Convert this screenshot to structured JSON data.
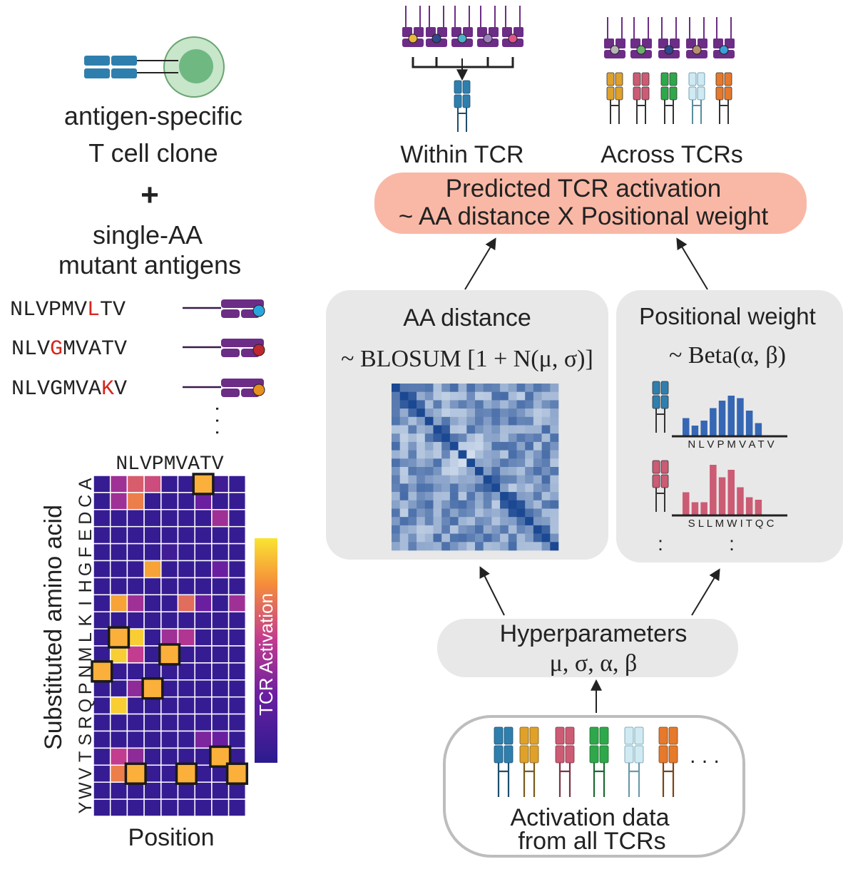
{
  "left": {
    "clone_line1": "antigen-specific",
    "clone_line2": "T cell clone",
    "plus": "+",
    "mutant_line1": "single-AA",
    "mutant_line2": "mutant antigens",
    "peptides": [
      {
        "pre": "NLVPMV",
        "mut": "L",
        "post": "TV",
        "dot_color": "#2aa6df"
      },
      {
        "pre": "NLV",
        "mut": "G",
        "post": "MVATV",
        "dot_color": "#c0282f"
      },
      {
        "pre": "NLVGMVA",
        "mut": "K",
        "post": "V",
        "dot_color": "#e8901e"
      }
    ],
    "ellipsis": ". . .",
    "mutation_color": "#d7261e"
  },
  "heatmap": {
    "columns": [
      "N",
      "L",
      "V",
      "P",
      "M",
      "V",
      "A",
      "T",
      "V"
    ],
    "column_header": "NLVPMVATV",
    "rows": [
      "A",
      "C",
      "D",
      "E",
      "F",
      "G",
      "H",
      "I",
      "K",
      "L",
      "M",
      "N",
      "P",
      "Q",
      "R",
      "S",
      "T",
      "V",
      "W",
      "Y"
    ],
    "ylabel": "Substituted amino acid",
    "xlabel": "Position",
    "colorbar_label": "TCR Activation",
    "wildtype_color": "#fbb03b",
    "values": [
      [
        0.05,
        0.45,
        0.65,
        0.6,
        0.05,
        0.05,
        1.0,
        0.1,
        0.05
      ],
      [
        0.05,
        0.45,
        0.75,
        0.05,
        0.05,
        0.05,
        0.3,
        0.05,
        0.05
      ],
      [
        0.05,
        0.05,
        0.05,
        0.05,
        0.05,
        0.05,
        0.05,
        0.45,
        0.05
      ],
      [
        0.05,
        0.05,
        0.05,
        0.05,
        0.05,
        0.05,
        0.05,
        0.05,
        0.05
      ],
      [
        0.05,
        0.05,
        0.05,
        0.05,
        0.1,
        0.05,
        0.05,
        0.05,
        0.05
      ],
      [
        0.05,
        0.05,
        0.05,
        0.85,
        0.05,
        0.05,
        0.05,
        0.3,
        0.05
      ],
      [
        0.05,
        0.05,
        0.05,
        0.05,
        0.05,
        0.05,
        0.05,
        0.05,
        0.05
      ],
      [
        0.05,
        0.85,
        0.45,
        0.05,
        0.05,
        0.7,
        0.3,
        0.05,
        0.45
      ],
      [
        0.05,
        0.05,
        0.05,
        0.05,
        0.05,
        0.05,
        0.05,
        0.05,
        0.05
      ],
      [
        0.05,
        1.0,
        0.95,
        0.05,
        0.45,
        0.5,
        0.05,
        0.05,
        0.05
      ],
      [
        0.05,
        0.95,
        0.55,
        0.05,
        1.0,
        0.05,
        0.05,
        0.05,
        0.05
      ],
      [
        1.0,
        0.05,
        0.05,
        0.05,
        0.05,
        0.05,
        0.05,
        0.05,
        0.05
      ],
      [
        0.05,
        0.05,
        0.4,
        1.0,
        0.05,
        0.05,
        0.05,
        0.05,
        0.05
      ],
      [
        0.05,
        0.95,
        0.05,
        0.05,
        0.05,
        0.05,
        0.05,
        0.05,
        0.05
      ],
      [
        0.05,
        0.05,
        0.05,
        0.05,
        0.05,
        0.05,
        0.05,
        0.05,
        0.05
      ],
      [
        0.05,
        0.05,
        0.05,
        0.05,
        0.05,
        0.05,
        0.35,
        0.3,
        0.05
      ],
      [
        0.05,
        0.55,
        0.4,
        0.05,
        0.05,
        0.05,
        0.05,
        1.0,
        0.05
      ],
      [
        0.05,
        0.75,
        1.0,
        0.05,
        0.05,
        1.0,
        0.05,
        0.05,
        1.0
      ],
      [
        0.05,
        0.05,
        0.05,
        0.05,
        0.05,
        0.05,
        0.05,
        0.05,
        0.05
      ],
      [
        0.05,
        0.05,
        0.05,
        0.05,
        0.05,
        0.05,
        0.05,
        0.05,
        0.05
      ]
    ],
    "wildtype_cells": [
      [
        0,
        6
      ],
      [
        9,
        1
      ],
      [
        10,
        4
      ],
      [
        11,
        0
      ],
      [
        12,
        3
      ],
      [
        16,
        7
      ],
      [
        17,
        2
      ],
      [
        17,
        5
      ],
      [
        17,
        8
      ]
    ]
  },
  "top": {
    "within_label": "Within TCR",
    "across_label": "Across TCRs",
    "dot_colors": [
      "#e8b83a",
      "#2e4a8c",
      "#4ab3c9",
      "#a07fbf",
      "#e0548a"
    ],
    "across_dot_colors": [
      "#b5b5b5",
      "#6ab06a",
      "#2e4a8c",
      "#b89070",
      "#3aa0d8"
    ],
    "tcr_colors": [
      "#e0a12a",
      "#cc5b74",
      "#2ea84a",
      "#cfeaf2",
      "#e6792c"
    ]
  },
  "predicted": {
    "line1": "Predicted  TCR  activation",
    "line2": "~ AA distance X Positional weight",
    "fill": "#f9b8a6"
  },
  "aa_distance": {
    "title": "AA distance",
    "formula": "~ BLOSUM [1 + N(μ, σ)]"
  },
  "positional_weight": {
    "title": "Positional weight",
    "formula": "~ Beta(α, β)",
    "tcr1": {
      "letters": "N L V P M V A T V",
      "bars": [
        0.35,
        0.2,
        0.3,
        0.55,
        0.7,
        0.8,
        0.75,
        0.5,
        0.25
      ],
      "color": "#3567b4",
      "tcr_color": "#2f7fae"
    },
    "tcr2": {
      "letters": "S L L M W I T Q C",
      "bars": [
        0.45,
        0.25,
        0.25,
        1.0,
        0.75,
        0.9,
        0.55,
        0.35,
        0.3
      ],
      "color": "#cc5b74",
      "tcr_color": "#cc5b74"
    },
    "ellipsis": ":"
  },
  "hyper": {
    "title": "Hyperparameters",
    "params": "μ, σ, α, β"
  },
  "activation_data": {
    "line1": "Activation data",
    "line2": "from all TCRs",
    "ellipsis": ". . .",
    "tcr_colors": [
      "#2f7fae",
      "#e0a12a",
      "#cc5b74",
      "#2ea84a",
      "#cfeaf2",
      "#e6792c"
    ]
  }
}
